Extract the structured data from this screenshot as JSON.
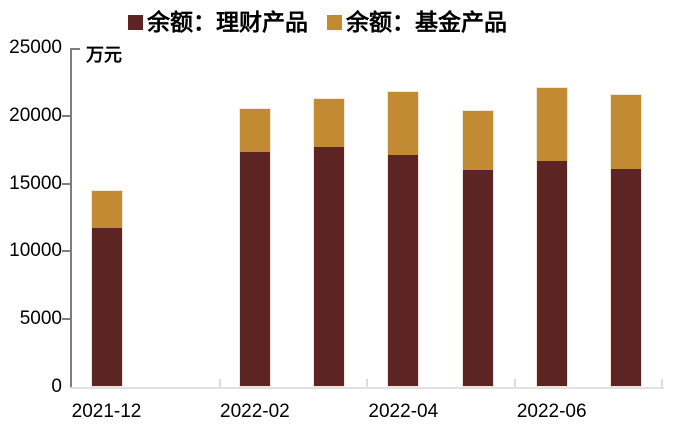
{
  "chart_data": {
    "type": "bar",
    "stacked": true,
    "title": "",
    "unit_label": "万元",
    "x": [
      "2021-12",
      "2022-02",
      "2022-03",
      "2022-04",
      "2022-05",
      "2022-06",
      "2022-07"
    ],
    "series": [
      {
        "name": "余额：理财产品",
        "color": "#5d2424",
        "values": [
          11650,
          17250,
          17600,
          17000,
          15900,
          16600,
          16000
        ]
      },
      {
        "name": "余额：基金产品",
        "color": "#c18a33",
        "values": [
          2750,
          3200,
          3550,
          4650,
          4350,
          5400,
          5450
        ]
      }
    ],
    "ylim": [
      0,
      25000
    ],
    "yticks": [
      0,
      5000,
      10000,
      15000,
      20000,
      25000
    ],
    "xtick_labels_shown": [
      "2021-12",
      "2022-02",
      "2022-04",
      "2022-06"
    ],
    "legend_position": "top",
    "grid": false,
    "axis_color": "#7d7d7d",
    "baseline_color": "#e1e1e1",
    "background_color": "#ffffff"
  }
}
